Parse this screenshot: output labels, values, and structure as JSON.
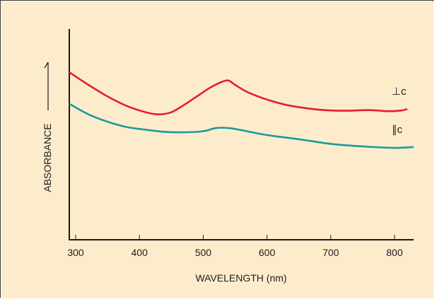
{
  "colors": {
    "background": "#fdeccb",
    "axis": "#1a1a1a",
    "perp": "#e3202c",
    "parallel": "#1a9b9b"
  },
  "chart_data": {
    "type": "line",
    "title": "",
    "xlabel": "WAVELENGTH (nm)",
    "ylabel": "ABSORBANCE",
    "xlim": [
      290,
      830
    ],
    "ylim": [
      0,
      1
    ],
    "x_ticks": [
      300,
      400,
      500,
      600,
      700,
      800
    ],
    "x_tick_labels": [
      "300",
      "400",
      "500",
      "600",
      "700",
      "800"
    ],
    "y_ticks_shown": false,
    "grid": false,
    "legend": "inline labels at right end of curves",
    "series": [
      {
        "name": "⊥c",
        "color": "#e3202c",
        "x": [
          290,
          320,
          350,
          380,
          410,
          430,
          450,
          470,
          490,
          510,
          530,
          540,
          550,
          570,
          600,
          630,
          660,
          690,
          720,
          760,
          790,
          810,
          820
        ],
        "y": [
          0.795,
          0.735,
          0.68,
          0.635,
          0.605,
          0.595,
          0.605,
          0.64,
          0.68,
          0.72,
          0.75,
          0.755,
          0.735,
          0.7,
          0.665,
          0.64,
          0.625,
          0.615,
          0.612,
          0.615,
          0.61,
          0.613,
          0.62
        ]
      },
      {
        "name": "∥c",
        "color": "#1a9b9b",
        "x": [
          290,
          320,
          350,
          380,
          410,
          440,
          470,
          500,
          520,
          540,
          560,
          600,
          650,
          700,
          750,
          800,
          830
        ],
        "y": [
          0.645,
          0.595,
          0.56,
          0.535,
          0.522,
          0.512,
          0.51,
          0.515,
          0.53,
          0.53,
          0.52,
          0.497,
          0.477,
          0.455,
          0.443,
          0.436,
          0.44
        ]
      }
    ]
  }
}
